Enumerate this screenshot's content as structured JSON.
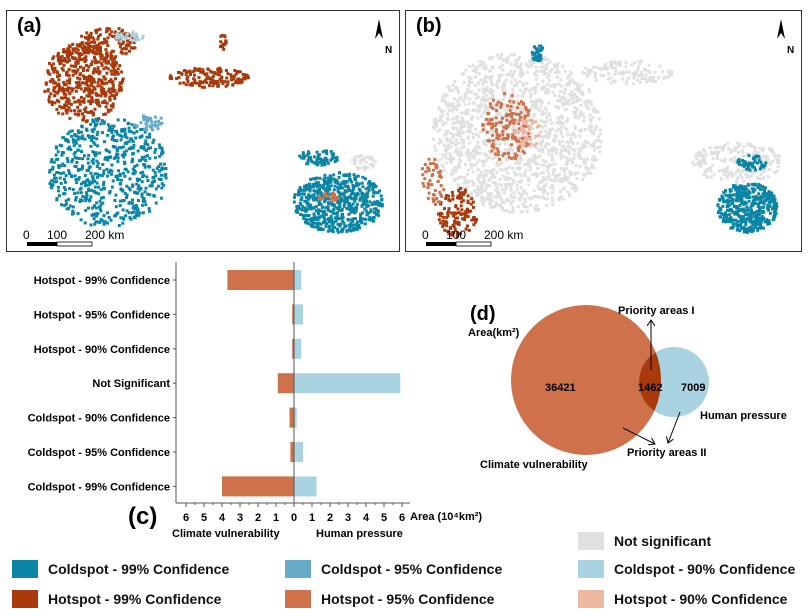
{
  "panels": {
    "a": "(a)",
    "b": "(b)",
    "c": "(c)",
    "d": "(d)"
  },
  "map": {
    "north": "N",
    "scale_labels": [
      "0",
      "100",
      "200 km"
    ]
  },
  "colors": {
    "coldspot_99": "#0a85a6",
    "coldspot_95": "#68aac8",
    "coldspot_90": "#a9d3e0",
    "hotspot_99": "#a83a0c",
    "hotspot_95": "#cf714a",
    "hotspot_90": "#eeb8a0",
    "not_significant": "#e0e0e0"
  },
  "chart_data": {
    "type": "bar",
    "orientation": "horizontal-diverging",
    "categories": [
      "Hotspot - 99% Confidence",
      "Hotspot - 95% Confidence",
      "Hotspot - 90% Confidence",
      "Not Significant",
      "Coldspot - 90% Confidence",
      "Coldspot - 95% Confidence",
      "Coldspot - 99% Confidence"
    ],
    "series": [
      {
        "name": "Climate vulnerability",
        "values": [
          3.7,
          0.1,
          0.1,
          0.9,
          0.25,
          0.2,
          4.0
        ],
        "color": "#cf714a"
      },
      {
        "name": "Human pressure",
        "values": [
          0.4,
          0.5,
          0.4,
          5.9,
          0.15,
          0.5,
          1.25
        ],
        "color": "#a9d3e0"
      }
    ],
    "xlabel": "Area (10⁴km²)",
    "xticks": [
      "6",
      "5",
      "4",
      "3",
      "2",
      "1",
      "0",
      "1",
      "2",
      "3",
      "4",
      "5",
      "6"
    ],
    "xlim": [
      -6,
      6
    ]
  },
  "venn": {
    "unit_label": "Area(km²)",
    "left_name": "Climate vulnerability",
    "right_name": "Human pressure",
    "left_only": "36421",
    "overlap": "1462",
    "right_only": "7009",
    "priority_1": "Priority areas I",
    "priority_2": "Priority areas II"
  },
  "legend": [
    {
      "label": "Not significant",
      "key": "not_significant"
    },
    {
      "label": "Coldspot - 99% Confidence",
      "key": "coldspot_99"
    },
    {
      "label": "Coldspot - 95% Confidence",
      "key": "coldspot_95"
    },
    {
      "label": "Coldspot - 90% Confidence",
      "key": "coldspot_90"
    },
    {
      "label": "Hotspot - 99% Confidence",
      "key": "hotspot_99"
    },
    {
      "label": "Hotspot - 95% Confidence",
      "key": "hotspot_95"
    },
    {
      "label": "Hotspot - 90% Confidence",
      "key": "hotspot_90"
    }
  ]
}
